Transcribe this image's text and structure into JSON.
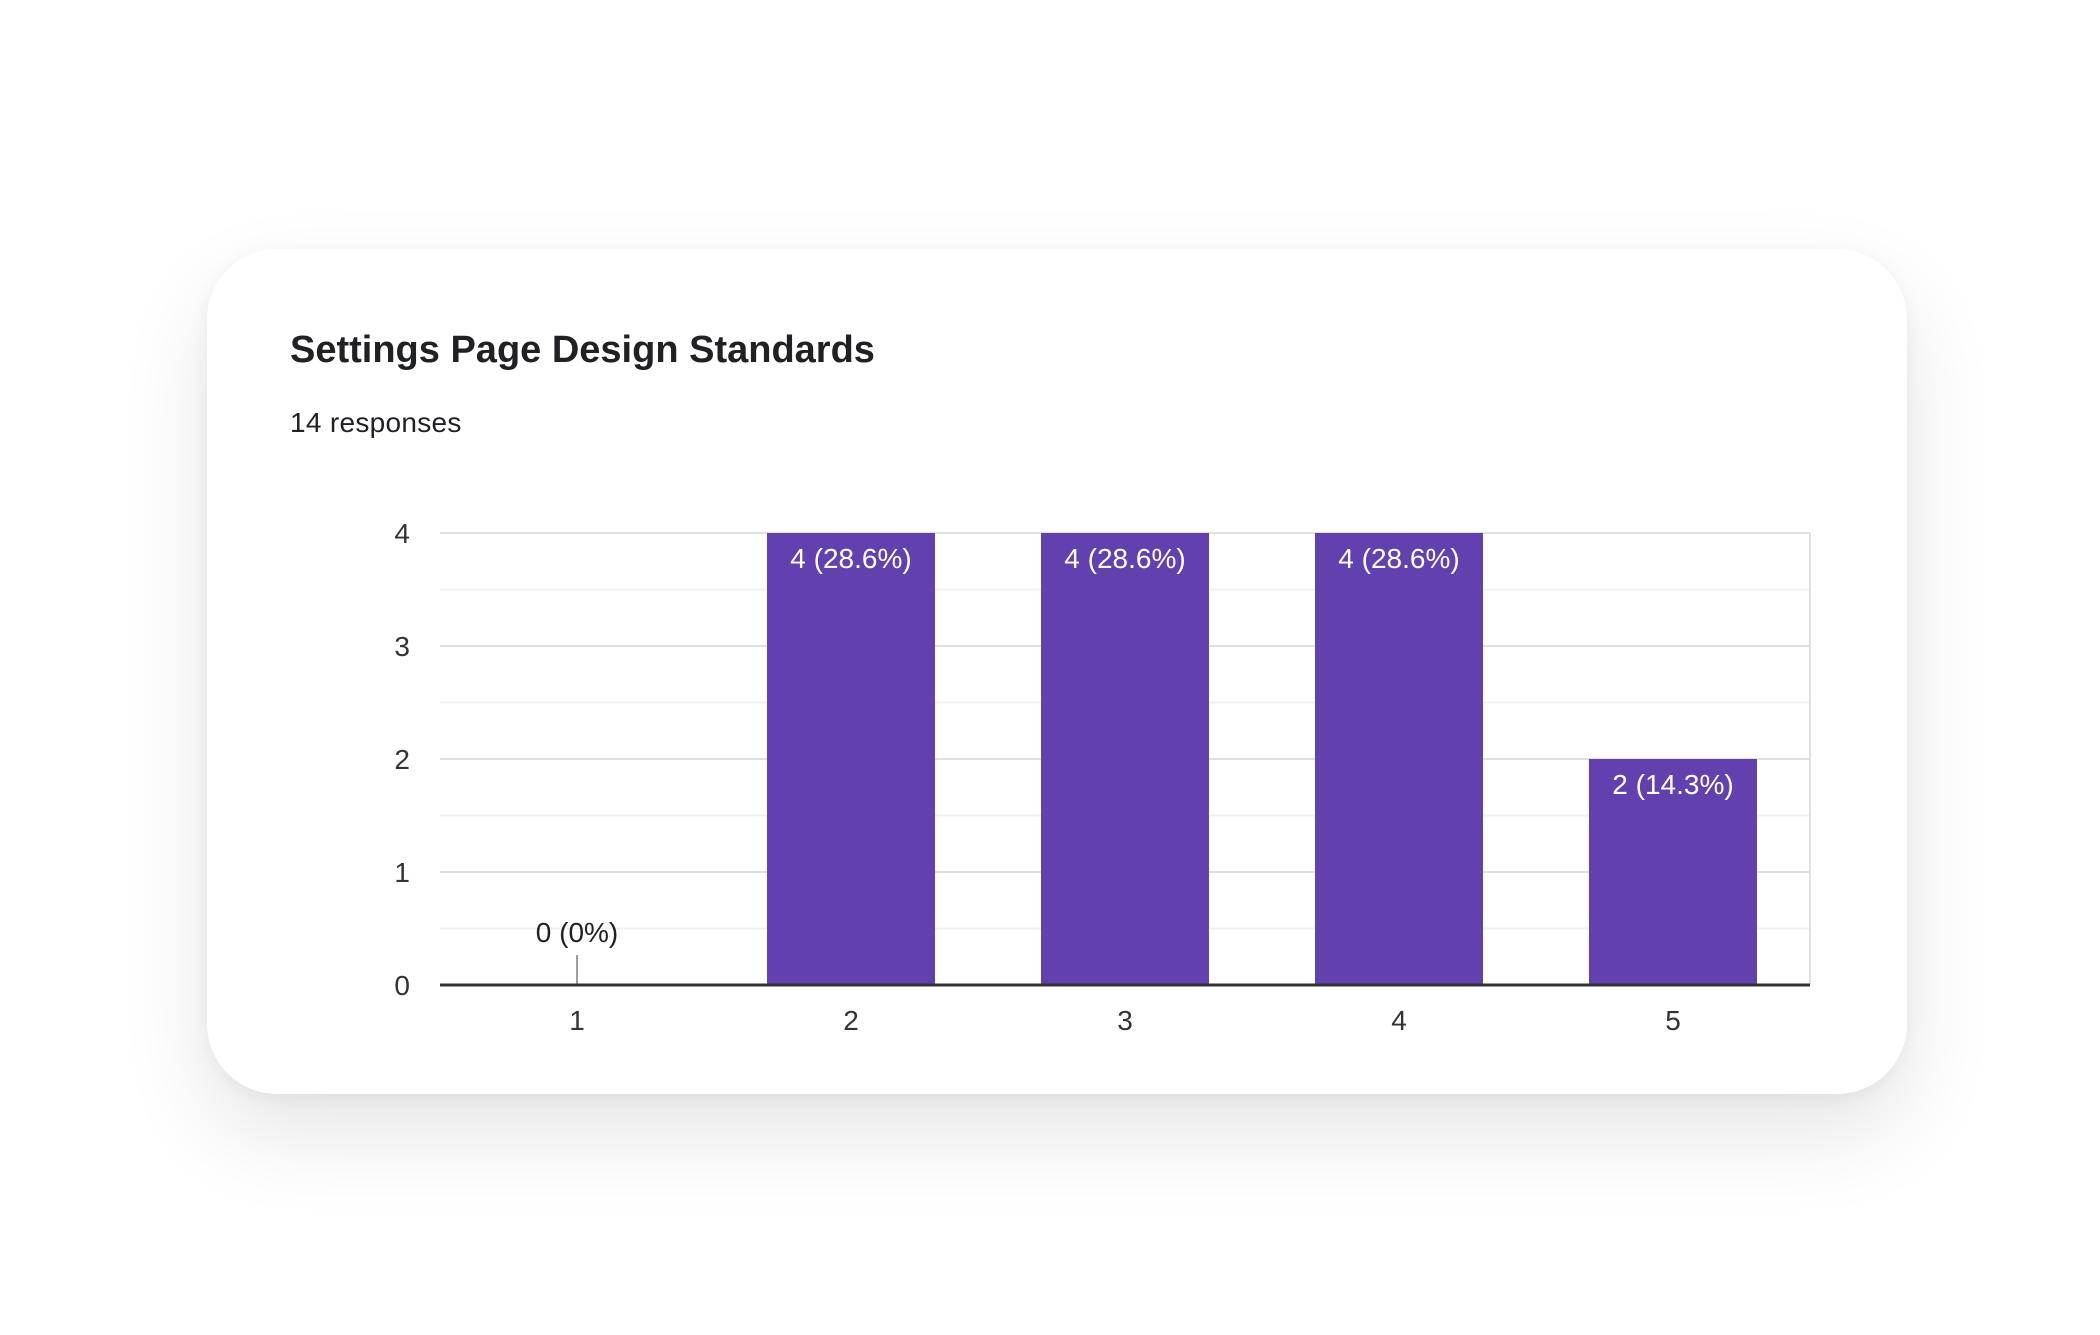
{
  "card": {
    "title": "Settings Page Design Standards",
    "responses_label": "14 responses"
  },
  "chart_data": {
    "type": "bar",
    "title": "Settings Page Design Standards",
    "subtitle": "14 responses",
    "categories": [
      "1",
      "2",
      "3",
      "4",
      "5"
    ],
    "values": [
      0,
      4,
      4,
      4,
      2
    ],
    "data_labels": [
      "0 (0%)",
      "4 (28.6%)",
      "4 (28.6%)",
      "4 (28.6%)",
      "2 (14.3%)"
    ],
    "y_ticks": [
      "0",
      "1",
      "2",
      "3",
      "4"
    ],
    "ylim": [
      0,
      4
    ],
    "xlabel": "",
    "ylabel": "",
    "grid": true,
    "legend": "none",
    "colors": {
      "bar": "#6240ae",
      "bar_label_inside": "#ffffff",
      "bar_label_outside": "#202124",
      "grid_major": "#e0e0e0",
      "grid_minor": "#f1f1f1",
      "axis": "#333333",
      "tick_label": "#333333"
    }
  }
}
